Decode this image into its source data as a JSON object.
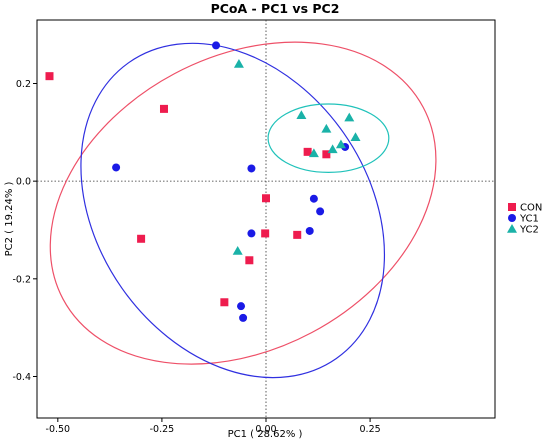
{
  "chart_data": {
    "type": "scatter",
    "title": "PCoA - PC1 vs PC2",
    "xlabel": "PC1 ( 28.62% )",
    "ylabel": "PC2 ( 19.24% )",
    "xlim": [
      -0.55,
      0.55
    ],
    "ylim": [
      -0.485,
      0.33
    ],
    "xticks": [
      -0.5,
      -0.25,
      0.0,
      0.25
    ],
    "xtick_labels": [
      "-0.50",
      "-0.25",
      "0.00",
      "0.25"
    ],
    "yticks": [
      -0.4,
      -0.2,
      0.0,
      0.2
    ],
    "ytick_labels": [
      "-0.4",
      "-0.2",
      "0.0",
      "0.2"
    ],
    "reference_lines": {
      "x": 0,
      "y": 0,
      "style": "dotted"
    },
    "legend_position": "right",
    "series": [
      {
        "name": "CON",
        "marker": "square",
        "color": "#EE1C4E",
        "points": [
          {
            "x": -0.52,
            "y": 0.215
          },
          {
            "x": -0.245,
            "y": 0.148
          },
          {
            "x": -0.3,
            "y": -0.118
          },
          {
            "x": 0.0,
            "y": -0.035
          },
          {
            "x": -0.002,
            "y": -0.107
          },
          {
            "x": 0.075,
            "y": -0.11
          },
          {
            "x": -0.04,
            "y": -0.162
          },
          {
            "x": -0.1,
            "y": -0.248
          },
          {
            "x": 0.1,
            "y": 0.06
          },
          {
            "x": 0.145,
            "y": 0.055
          }
        ]
      },
      {
        "name": "YC1",
        "marker": "circle",
        "color": "#1A1AE6",
        "points": [
          {
            "x": -0.12,
            "y": 0.278
          },
          {
            "x": -0.36,
            "y": 0.028
          },
          {
            "x": -0.035,
            "y": 0.026
          },
          {
            "x": 0.115,
            "y": -0.036
          },
          {
            "x": 0.13,
            "y": -0.062
          },
          {
            "x": -0.035,
            "y": -0.107
          },
          {
            "x": 0.105,
            "y": -0.102
          },
          {
            "x": 0.19,
            "y": 0.07
          },
          {
            "x": -0.06,
            "y": -0.256
          },
          {
            "x": -0.055,
            "y": -0.28
          }
        ]
      },
      {
        "name": "YC2",
        "marker": "triangle",
        "color": "#1AB2A8",
        "points": [
          {
            "x": -0.065,
            "y": 0.24
          },
          {
            "x": 0.085,
            "y": 0.135
          },
          {
            "x": 0.145,
            "y": 0.107
          },
          {
            "x": 0.2,
            "y": 0.13
          },
          {
            "x": 0.215,
            "y": 0.09
          },
          {
            "x": 0.16,
            "y": 0.065
          },
          {
            "x": 0.115,
            "y": 0.057
          },
          {
            "x": 0.18,
            "y": 0.075
          },
          {
            "x": -0.068,
            "y": -0.143
          }
        ]
      }
    ],
    "ellipses": [
      {
        "group": "CON",
        "color": "#EE5068",
        "cx": -0.055,
        "cy": -0.045,
        "rx": 0.49,
        "ry": 0.3,
        "rotation_deg": -28
      },
      {
        "group": "YC1",
        "color": "#3030E0",
        "cx": -0.08,
        "cy": -0.06,
        "rx": 0.325,
        "ry": 0.37,
        "rotation_deg": -35
      },
      {
        "group": "YC2",
        "color": "#20C2BA",
        "cx": 0.15,
        "cy": 0.088,
        "rx": 0.145,
        "ry": 0.07,
        "rotation_deg": 0
      }
    ]
  }
}
